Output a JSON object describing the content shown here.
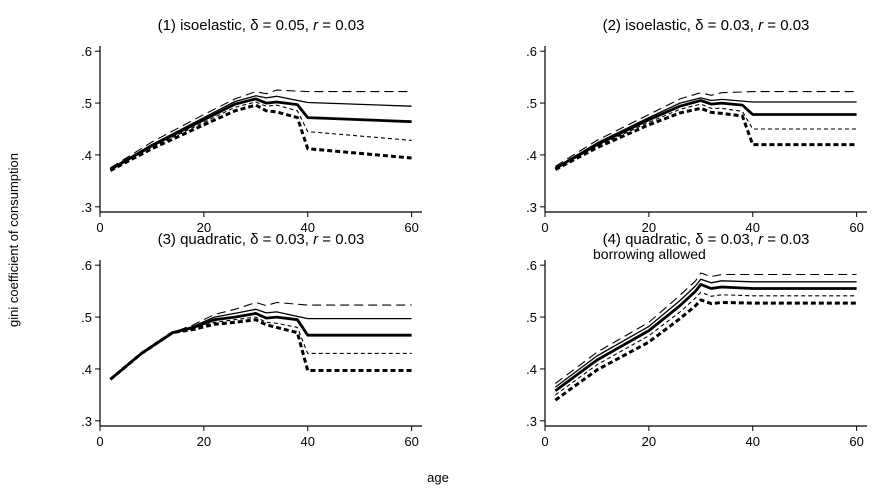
{
  "figure": {
    "ylabel": "gini coefficient of consumption",
    "xlabel": "age"
  },
  "chart_data": [
    {
      "type": "line",
      "title": "(1) isoelastic, δ = 0.05, r = 0.03",
      "title_parts": {
        "prefix": "(1) isoelastic, ",
        "delta": "δ = 0.05, ",
        "r_var": "r",
        "r_val": " = 0.03"
      },
      "xlabel": "age",
      "ylabel": "gini coefficient of consumption",
      "xlim": [
        0,
        62
      ],
      "ylim": [
        0.29,
        0.61
      ],
      "x_ticks": [
        0,
        20,
        40,
        60
      ],
      "x_tick_labels": [
        "0",
        "20",
        "40",
        "60"
      ],
      "y_ticks": [
        0.3,
        0.4,
        0.5,
        0.6
      ],
      "y_tick_labels": [
        ".3",
        ".4",
        ".5",
        ".6"
      ],
      "grid": false,
      "annotation": "",
      "series": [
        {
          "style": "long-dash thin",
          "x": [
            2,
            10,
            20,
            26,
            30,
            32,
            34,
            40,
            60
          ],
          "y": [
            0.375,
            0.425,
            0.478,
            0.508,
            0.522,
            0.518,
            0.525,
            0.522,
            0.522
          ]
        },
        {
          "style": "solid thin",
          "x": [
            2,
            10,
            20,
            26,
            30,
            32,
            34,
            40,
            60
          ],
          "y": [
            0.373,
            0.42,
            0.472,
            0.503,
            0.514,
            0.51,
            0.513,
            0.501,
            0.494
          ]
        },
        {
          "style": "solid thick",
          "x": [
            2,
            10,
            20,
            26,
            30,
            32,
            34,
            38,
            40,
            60
          ],
          "y": [
            0.372,
            0.418,
            0.468,
            0.498,
            0.508,
            0.5,
            0.502,
            0.497,
            0.472,
            0.464
          ]
        },
        {
          "style": "short-dash thin",
          "x": [
            2,
            10,
            20,
            26,
            30,
            32,
            34,
            38,
            40,
            60
          ],
          "y": [
            0.371,
            0.415,
            0.463,
            0.492,
            0.502,
            0.494,
            0.496,
            0.485,
            0.445,
            0.428
          ]
        },
        {
          "style": "short-dash thick",
          "x": [
            2,
            10,
            20,
            26,
            30,
            32,
            34,
            38,
            40,
            60
          ],
          "y": [
            0.37,
            0.412,
            0.458,
            0.485,
            0.496,
            0.485,
            0.483,
            0.472,
            0.412,
            0.394
          ]
        }
      ]
    },
    {
      "type": "line",
      "title": "(2) isoelastic, δ = 0.03, r = 0.03",
      "title_parts": {
        "prefix": "(2) isoelastic, ",
        "delta": "δ = 0.03, ",
        "r_var": "r",
        "r_val": " = 0.03"
      },
      "xlabel": "age",
      "ylabel": "gini coefficient of consumption",
      "xlim": [
        0,
        62
      ],
      "ylim": [
        0.29,
        0.61
      ],
      "x_ticks": [
        0,
        20,
        40,
        60
      ],
      "x_tick_labels": [
        "0",
        "20",
        "40",
        "60"
      ],
      "y_ticks": [
        0.3,
        0.4,
        0.5,
        0.6
      ],
      "y_tick_labels": [
        ".3",
        ".4",
        ".5",
        ".6"
      ],
      "grid": false,
      "annotation": "",
      "series": [
        {
          "style": "long-dash thin",
          "x": [
            2,
            10,
            20,
            26,
            30,
            32,
            34,
            40,
            60
          ],
          "y": [
            0.378,
            0.428,
            0.478,
            0.508,
            0.52,
            0.515,
            0.52,
            0.522,
            0.522
          ]
        },
        {
          "style": "solid thin",
          "x": [
            2,
            10,
            20,
            26,
            30,
            32,
            34,
            40,
            60
          ],
          "y": [
            0.375,
            0.423,
            0.472,
            0.5,
            0.51,
            0.505,
            0.507,
            0.502,
            0.502
          ]
        },
        {
          "style": "solid thick",
          "x": [
            2,
            10,
            20,
            26,
            30,
            32,
            34,
            38,
            40,
            60
          ],
          "y": [
            0.374,
            0.42,
            0.468,
            0.494,
            0.505,
            0.498,
            0.5,
            0.496,
            0.478,
            0.478
          ]
        },
        {
          "style": "short-dash thin",
          "x": [
            2,
            10,
            20,
            26,
            30,
            32,
            34,
            38,
            40,
            60
          ],
          "y": [
            0.373,
            0.417,
            0.463,
            0.488,
            0.498,
            0.49,
            0.49,
            0.484,
            0.45,
            0.45
          ]
        },
        {
          "style": "short-dash thick",
          "x": [
            2,
            10,
            20,
            26,
            30,
            32,
            34,
            38,
            40,
            60
          ],
          "y": [
            0.372,
            0.414,
            0.458,
            0.481,
            0.49,
            0.482,
            0.48,
            0.475,
            0.42,
            0.42
          ]
        }
      ]
    },
    {
      "type": "line",
      "title": "(3) quadratic, δ = 0.03, r = 0.03",
      "title_parts": {
        "prefix": "(3) quadratic, ",
        "delta": "δ = 0.03, ",
        "r_var": "r",
        "r_val": " = 0.03"
      },
      "xlabel": "age",
      "ylabel": "gini coefficient of consumption",
      "xlim": [
        0,
        62
      ],
      "ylim": [
        0.29,
        0.61
      ],
      "x_ticks": [
        0,
        20,
        40,
        60
      ],
      "x_tick_labels": [
        "0",
        "20",
        "40",
        "60"
      ],
      "y_ticks": [
        0.3,
        0.4,
        0.5,
        0.6
      ],
      "y_tick_labels": [
        ".3",
        ".4",
        ".5",
        ".6"
      ],
      "grid": false,
      "annotation": "",
      "series": [
        {
          "style": "long-dash thin",
          "x": [
            2,
            8,
            14,
            18,
            22,
            26,
            30,
            32,
            34,
            40,
            60
          ],
          "y": [
            0.38,
            0.43,
            0.47,
            0.485,
            0.505,
            0.515,
            0.528,
            0.522,
            0.528,
            0.523,
            0.523
          ]
        },
        {
          "style": "solid thin",
          "x": [
            2,
            8,
            14,
            18,
            22,
            26,
            30,
            32,
            34,
            40,
            60
          ],
          "y": [
            0.38,
            0.43,
            0.47,
            0.482,
            0.5,
            0.507,
            0.515,
            0.508,
            0.51,
            0.497,
            0.497
          ]
        },
        {
          "style": "solid thick",
          "x": [
            2,
            8,
            14,
            18,
            22,
            26,
            30,
            32,
            34,
            38,
            40,
            60
          ],
          "y": [
            0.38,
            0.43,
            0.47,
            0.48,
            0.495,
            0.5,
            0.507,
            0.498,
            0.5,
            0.495,
            0.465,
            0.465
          ]
        },
        {
          "style": "short-dash thin",
          "x": [
            2,
            8,
            14,
            18,
            22,
            26,
            30,
            32,
            34,
            38,
            40,
            60
          ],
          "y": [
            0.38,
            0.43,
            0.47,
            0.478,
            0.49,
            0.495,
            0.5,
            0.49,
            0.488,
            0.48,
            0.43,
            0.43
          ]
        },
        {
          "style": "short-dash thick",
          "x": [
            2,
            8,
            14,
            18,
            22,
            26,
            30,
            32,
            34,
            38,
            40,
            60
          ],
          "y": [
            0.38,
            0.43,
            0.47,
            0.476,
            0.486,
            0.49,
            0.495,
            0.485,
            0.48,
            0.47,
            0.397,
            0.397
          ]
        }
      ]
    },
    {
      "type": "line",
      "title": "(4) quadratic, δ = 0.03, r = 0.03",
      "title_parts": {
        "prefix": "(4) quadratic, ",
        "delta": "δ = 0.03, ",
        "r_var": "r",
        "r_val": " = 0.03"
      },
      "xlabel": "age",
      "ylabel": "gini coefficient of consumption",
      "xlim": [
        0,
        62
      ],
      "ylim": [
        0.29,
        0.61
      ],
      "x_ticks": [
        0,
        20,
        40,
        60
      ],
      "x_tick_labels": [
        "0",
        "20",
        "40",
        "60"
      ],
      "y_ticks": [
        0.3,
        0.4,
        0.5,
        0.6
      ],
      "y_tick_labels": [
        ".3",
        ".4",
        ".5",
        ".6"
      ],
      "grid": false,
      "annotation": "borrowing allowed",
      "series": [
        {
          "style": "long-dash thin",
          "x": [
            2,
            10,
            20,
            26,
            29,
            30,
            32,
            34,
            40,
            60
          ],
          "y": [
            0.372,
            0.432,
            0.49,
            0.542,
            0.57,
            0.585,
            0.578,
            0.582,
            0.582,
            0.582
          ]
        },
        {
          "style": "solid thin",
          "x": [
            2,
            10,
            20,
            26,
            29,
            30,
            32,
            34,
            40,
            60
          ],
          "y": [
            0.365,
            0.425,
            0.482,
            0.532,
            0.56,
            0.573,
            0.566,
            0.57,
            0.568,
            0.568
          ]
        },
        {
          "style": "solid thick",
          "x": [
            2,
            10,
            20,
            26,
            29,
            30,
            32,
            34,
            40,
            60
          ],
          "y": [
            0.358,
            0.417,
            0.474,
            0.522,
            0.55,
            0.563,
            0.555,
            0.558,
            0.555,
            0.555
          ]
        },
        {
          "style": "short-dash thin",
          "x": [
            2,
            10,
            20,
            26,
            29,
            30,
            32,
            34,
            40,
            60
          ],
          "y": [
            0.35,
            0.408,
            0.464,
            0.51,
            0.537,
            0.548,
            0.54,
            0.543,
            0.541,
            0.541
          ]
        },
        {
          "style": "short-dash thick",
          "x": [
            2,
            10,
            20,
            26,
            29,
            30,
            32,
            34,
            40,
            60
          ],
          "y": [
            0.34,
            0.398,
            0.452,
            0.497,
            0.522,
            0.533,
            0.526,
            0.528,
            0.527,
            0.527
          ]
        }
      ]
    }
  ]
}
